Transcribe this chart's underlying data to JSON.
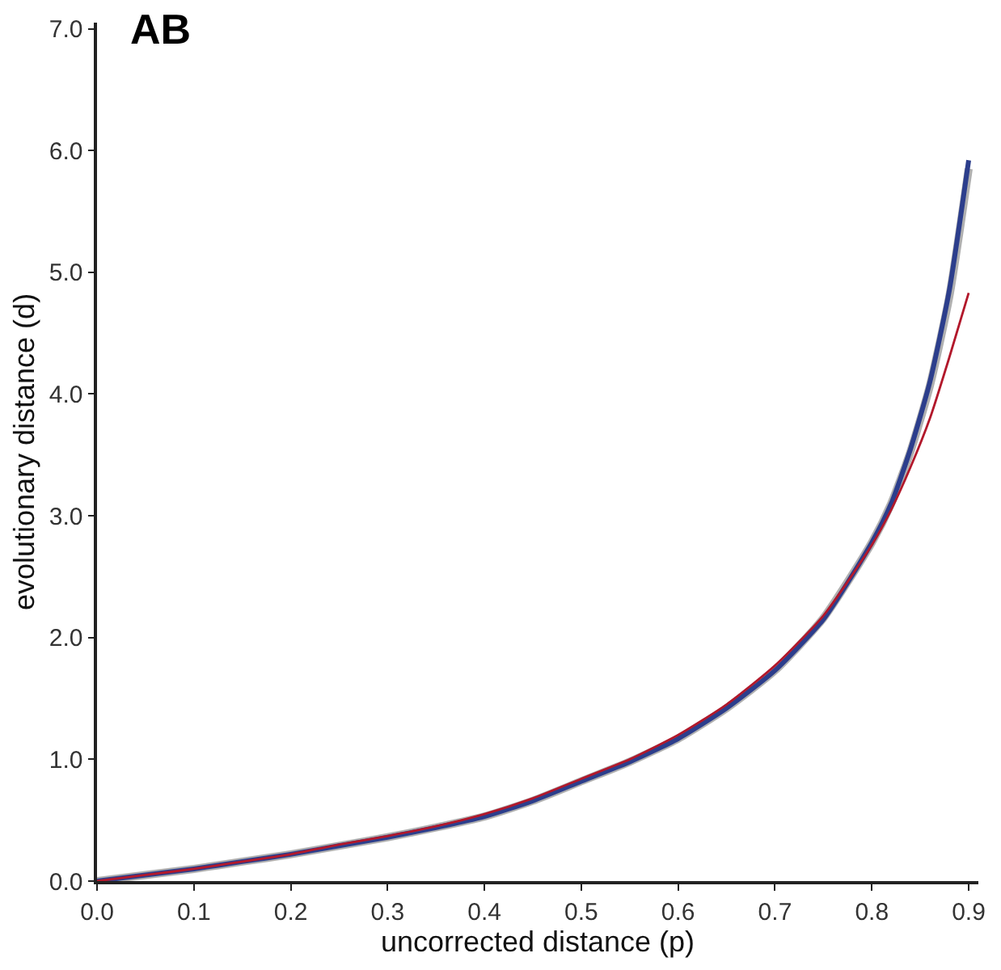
{
  "chart_data": {
    "type": "line",
    "title": "AB",
    "xlabel": "uncorrected distance (p)",
    "ylabel": "evolutionary distance (d)",
    "xlim": [
      0,
      0.91
    ],
    "ylim": [
      0,
      7.05
    ],
    "xticks": [
      {
        "value": 0,
        "label": "0.0"
      },
      0.1,
      0.2,
      0.3,
      0.4,
      0.5,
      0.6,
      0.7,
      0.8,
      0.9
    ],
    "yticks": [
      {
        "value": 0,
        "label": "0.0"
      },
      {
        "value": 1,
        "label": "1.0"
      },
      {
        "value": 2,
        "label": "2.0"
      },
      {
        "value": 3,
        "label": "3.0"
      },
      {
        "value": 4,
        "label": "4.0"
      },
      {
        "value": 5,
        "label": "5.0"
      },
      {
        "value": 6,
        "label": "6.0"
      },
      {
        "value": 7,
        "label": "7.0"
      }
    ],
    "x": [
      0,
      0.05,
      0.1,
      0.15,
      0.2,
      0.25,
      0.3,
      0.35,
      0.4,
      0.45,
      0.5,
      0.55,
      0.6,
      0.65,
      0.7,
      0.75,
      0.8,
      0.82,
      0.84,
      0.86,
      0.88,
      0.9
    ],
    "marker": "none",
    "line_style": "solid",
    "series": [
      {
        "color": "#b0b0b0",
        "values": [
          0,
          0.05,
          0.1,
          0.16,
          0.22,
          0.29,
          0.36,
          0.44,
          0.53,
          0.66,
          0.82,
          0.98,
          1.17,
          1.42,
          1.73,
          2.16,
          2.78,
          3.1,
          3.53,
          4.07,
          4.8,
          5.85
        ]
      },
      {
        "color": "#2c3e8c",
        "values": [
          0,
          0.05,
          0.1,
          0.16,
          0.22,
          0.29,
          0.36,
          0.44,
          0.53,
          0.66,
          0.82,
          0.98,
          1.17,
          1.42,
          1.73,
          2.15,
          2.78,
          3.1,
          3.55,
          4.1,
          4.85,
          5.92
        ]
      },
      {
        "color": "#b2182b",
        "values": [
          0,
          0.05,
          0.1,
          0.16,
          0.22,
          0.3,
          0.37,
          0.45,
          0.55,
          0.68,
          0.84,
          1.0,
          1.2,
          1.45,
          1.77,
          2.18,
          2.76,
          3.05,
          3.4,
          3.8,
          4.3,
          4.83
        ]
      }
    ]
  }
}
